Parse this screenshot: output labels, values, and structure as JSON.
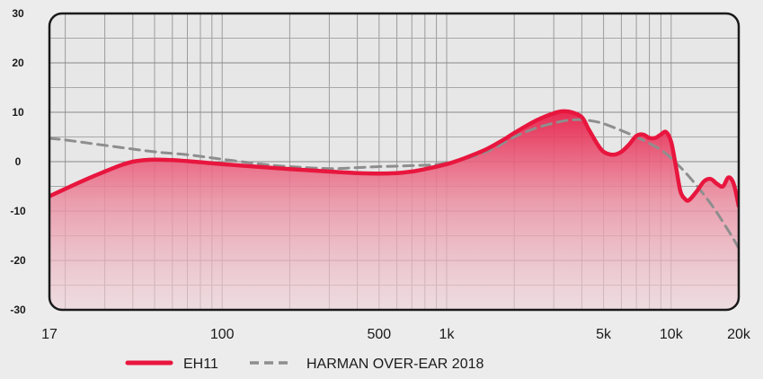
{
  "chart_data": {
    "type": "line",
    "xscale": "log",
    "xlim": [
      17,
      20000
    ],
    "ylim": [
      -30,
      30
    ],
    "x_ticks": [
      17,
      100,
      500,
      1000,
      5000,
      10000,
      20000
    ],
    "x_tick_labels": [
      "17",
      "100",
      "500",
      "1k",
      "5k",
      "10k",
      "20k"
    ],
    "y_ticks": [
      30,
      20,
      10,
      0,
      -10,
      -20,
      -30
    ],
    "y_tick_labels": [
      "30",
      "20",
      "10",
      "0",
      "-10",
      "-20",
      "-30"
    ],
    "grid": true,
    "legend_position": "bottom",
    "series": [
      {
        "name": "EH11",
        "color": "#e8163e",
        "style": "solid",
        "filled": true,
        "points": [
          [
            17,
            -7
          ],
          [
            20,
            -5.5
          ],
          [
            25,
            -3.5
          ],
          [
            30,
            -2
          ],
          [
            35,
            -0.8
          ],
          [
            40,
            0
          ],
          [
            45,
            0.3
          ],
          [
            50,
            0.4
          ],
          [
            60,
            0.3
          ],
          [
            70,
            0.1
          ],
          [
            80,
            -0.1
          ],
          [
            100,
            -0.5
          ],
          [
            150,
            -1.1
          ],
          [
            200,
            -1.5
          ],
          [
            300,
            -2
          ],
          [
            400,
            -2.3
          ],
          [
            500,
            -2.4
          ],
          [
            600,
            -2.3
          ],
          [
            700,
            -2
          ],
          [
            800,
            -1.5
          ],
          [
            1000,
            -0.5
          ],
          [
            1200,
            0.7
          ],
          [
            1500,
            2.5
          ],
          [
            1800,
            4.5
          ],
          [
            2000,
            5.8
          ],
          [
            2500,
            8.3
          ],
          [
            3000,
            9.8
          ],
          [
            3300,
            10.2
          ],
          [
            3600,
            10
          ],
          [
            4000,
            9
          ],
          [
            4300,
            6.5
          ],
          [
            4700,
            3.5
          ],
          [
            5000,
            2
          ],
          [
            5500,
            1.4
          ],
          [
            6000,
            2
          ],
          [
            6500,
            3.5
          ],
          [
            7000,
            5.2
          ],
          [
            7500,
            5.5
          ],
          [
            8000,
            4.8
          ],
          [
            8500,
            4.8
          ],
          [
            9000,
            5.5
          ],
          [
            9500,
            6
          ],
          [
            10000,
            4
          ],
          [
            10500,
            -1
          ],
          [
            11000,
            -6
          ],
          [
            11500,
            -7.5
          ],
          [
            12000,
            -7.8
          ],
          [
            13000,
            -6
          ],
          [
            14000,
            -4
          ],
          [
            15000,
            -3.5
          ],
          [
            16000,
            -4.5
          ],
          [
            17000,
            -5
          ],
          [
            18000,
            -3.2
          ],
          [
            19000,
            -4.5
          ],
          [
            20000,
            -9
          ]
        ]
      },
      {
        "name": "HARMAN OVER-EAR 2018",
        "color": "#8e8e8e",
        "style": "dashed",
        "filled": false,
        "points": [
          [
            17,
            4.7
          ],
          [
            20,
            4.4
          ],
          [
            30,
            3.3
          ],
          [
            50,
            2
          ],
          [
            70,
            1.4
          ],
          [
            100,
            0.5
          ],
          [
            150,
            -0.5
          ],
          [
            200,
            -1
          ],
          [
            300,
            -1.4
          ],
          [
            400,
            -1.2
          ],
          [
            500,
            -1
          ],
          [
            700,
            -0.8
          ],
          [
            1000,
            -0.3
          ],
          [
            1500,
            2
          ],
          [
            2000,
            5
          ],
          [
            2500,
            6.8
          ],
          [
            3000,
            7.8
          ],
          [
            3500,
            8.4
          ],
          [
            4000,
            8.5
          ],
          [
            4500,
            8.2
          ],
          [
            5000,
            7.7
          ],
          [
            6000,
            6.3
          ],
          [
            7000,
            5
          ],
          [
            8000,
            3.7
          ],
          [
            9000,
            2.4
          ],
          [
            10000,
            0.7
          ],
          [
            12000,
            -3
          ],
          [
            15000,
            -8.5
          ],
          [
            18000,
            -14
          ],
          [
            20000,
            -17.5
          ]
        ]
      }
    ]
  }
}
